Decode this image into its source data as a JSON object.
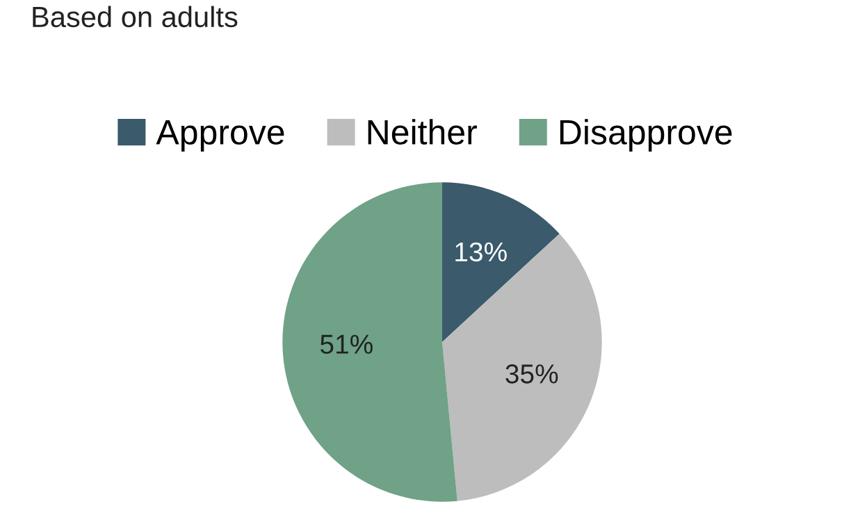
{
  "chart_data": {
    "type": "pie",
    "subtitle": "Based on adults",
    "categories": [
      "Approve",
      "Neither",
      "Disapprove"
    ],
    "values": [
      13,
      35,
      51
    ],
    "colors": [
      "#3b5a6b",
      "#bdbdbd",
      "#6fa287"
    ],
    "value_labels": [
      "13%",
      "35%",
      "51%"
    ],
    "legend": "top"
  }
}
